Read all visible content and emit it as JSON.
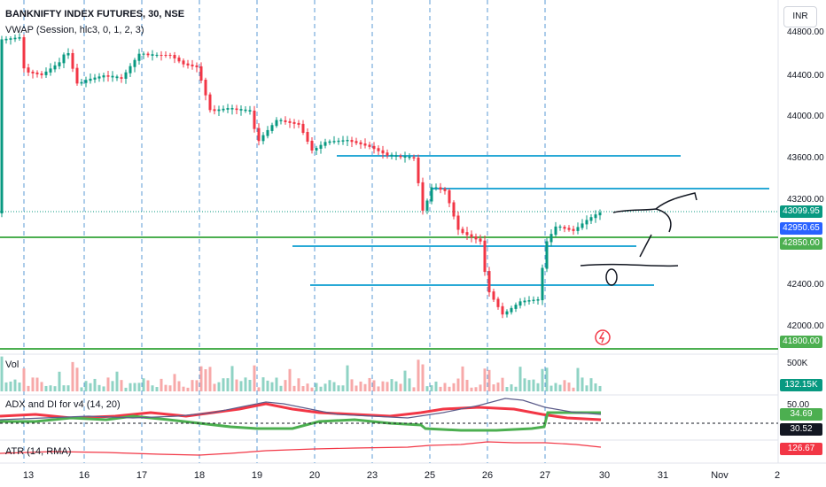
{
  "header": {
    "symbol_title": "BANKNIFTY INDEX FUTURES, 30, NSE",
    "vwap_label": "VWAP (Session, hlc3, 0, 1, 2, 3)"
  },
  "currency_button": "INR",
  "price_axis": {
    "ticks": [
      "44800.00",
      "44400.00",
      "44000.00",
      "43600.00",
      "43200.00",
      "42400.00",
      "42000.00"
    ],
    "badges": [
      {
        "text": "43099.95",
        "color": "#089981"
      },
      {
        "text": "42950.65",
        "color": "#2962ff"
      },
      {
        "text": "42850.00",
        "color": "#4caf50"
      },
      {
        "text": "41800.00",
        "color": "#4caf50"
      }
    ]
  },
  "volume_pane": {
    "label": "Vol",
    "tick": "500K",
    "badge": {
      "text": "132.15K",
      "color": "#089981"
    }
  },
  "adx_pane": {
    "label": "ADX and DI for v4 (14, 20)",
    "tick": "50.00",
    "badges": [
      {
        "text": "34.69",
        "color": "#4caf50"
      },
      {
        "text": "30.52",
        "color": "#131722"
      }
    ]
  },
  "atr_pane": {
    "label": "ATR (14, RMA)",
    "badge": {
      "text": "126.67",
      "color": "#f23645"
    }
  },
  "time_axis": {
    "labels": [
      "13",
      "16",
      "17",
      "18",
      "19",
      "20",
      "23",
      "25",
      "26",
      "27",
      "30",
      "31",
      "Nov",
      "2"
    ]
  },
  "colors": {
    "up": "#089981",
    "down": "#f23645",
    "support_green": "#4caf50",
    "cyan_levels": "#29a9d6",
    "session_lines": "#5b9bd5"
  },
  "icons": [
    "alert-clock-icon"
  ]
}
